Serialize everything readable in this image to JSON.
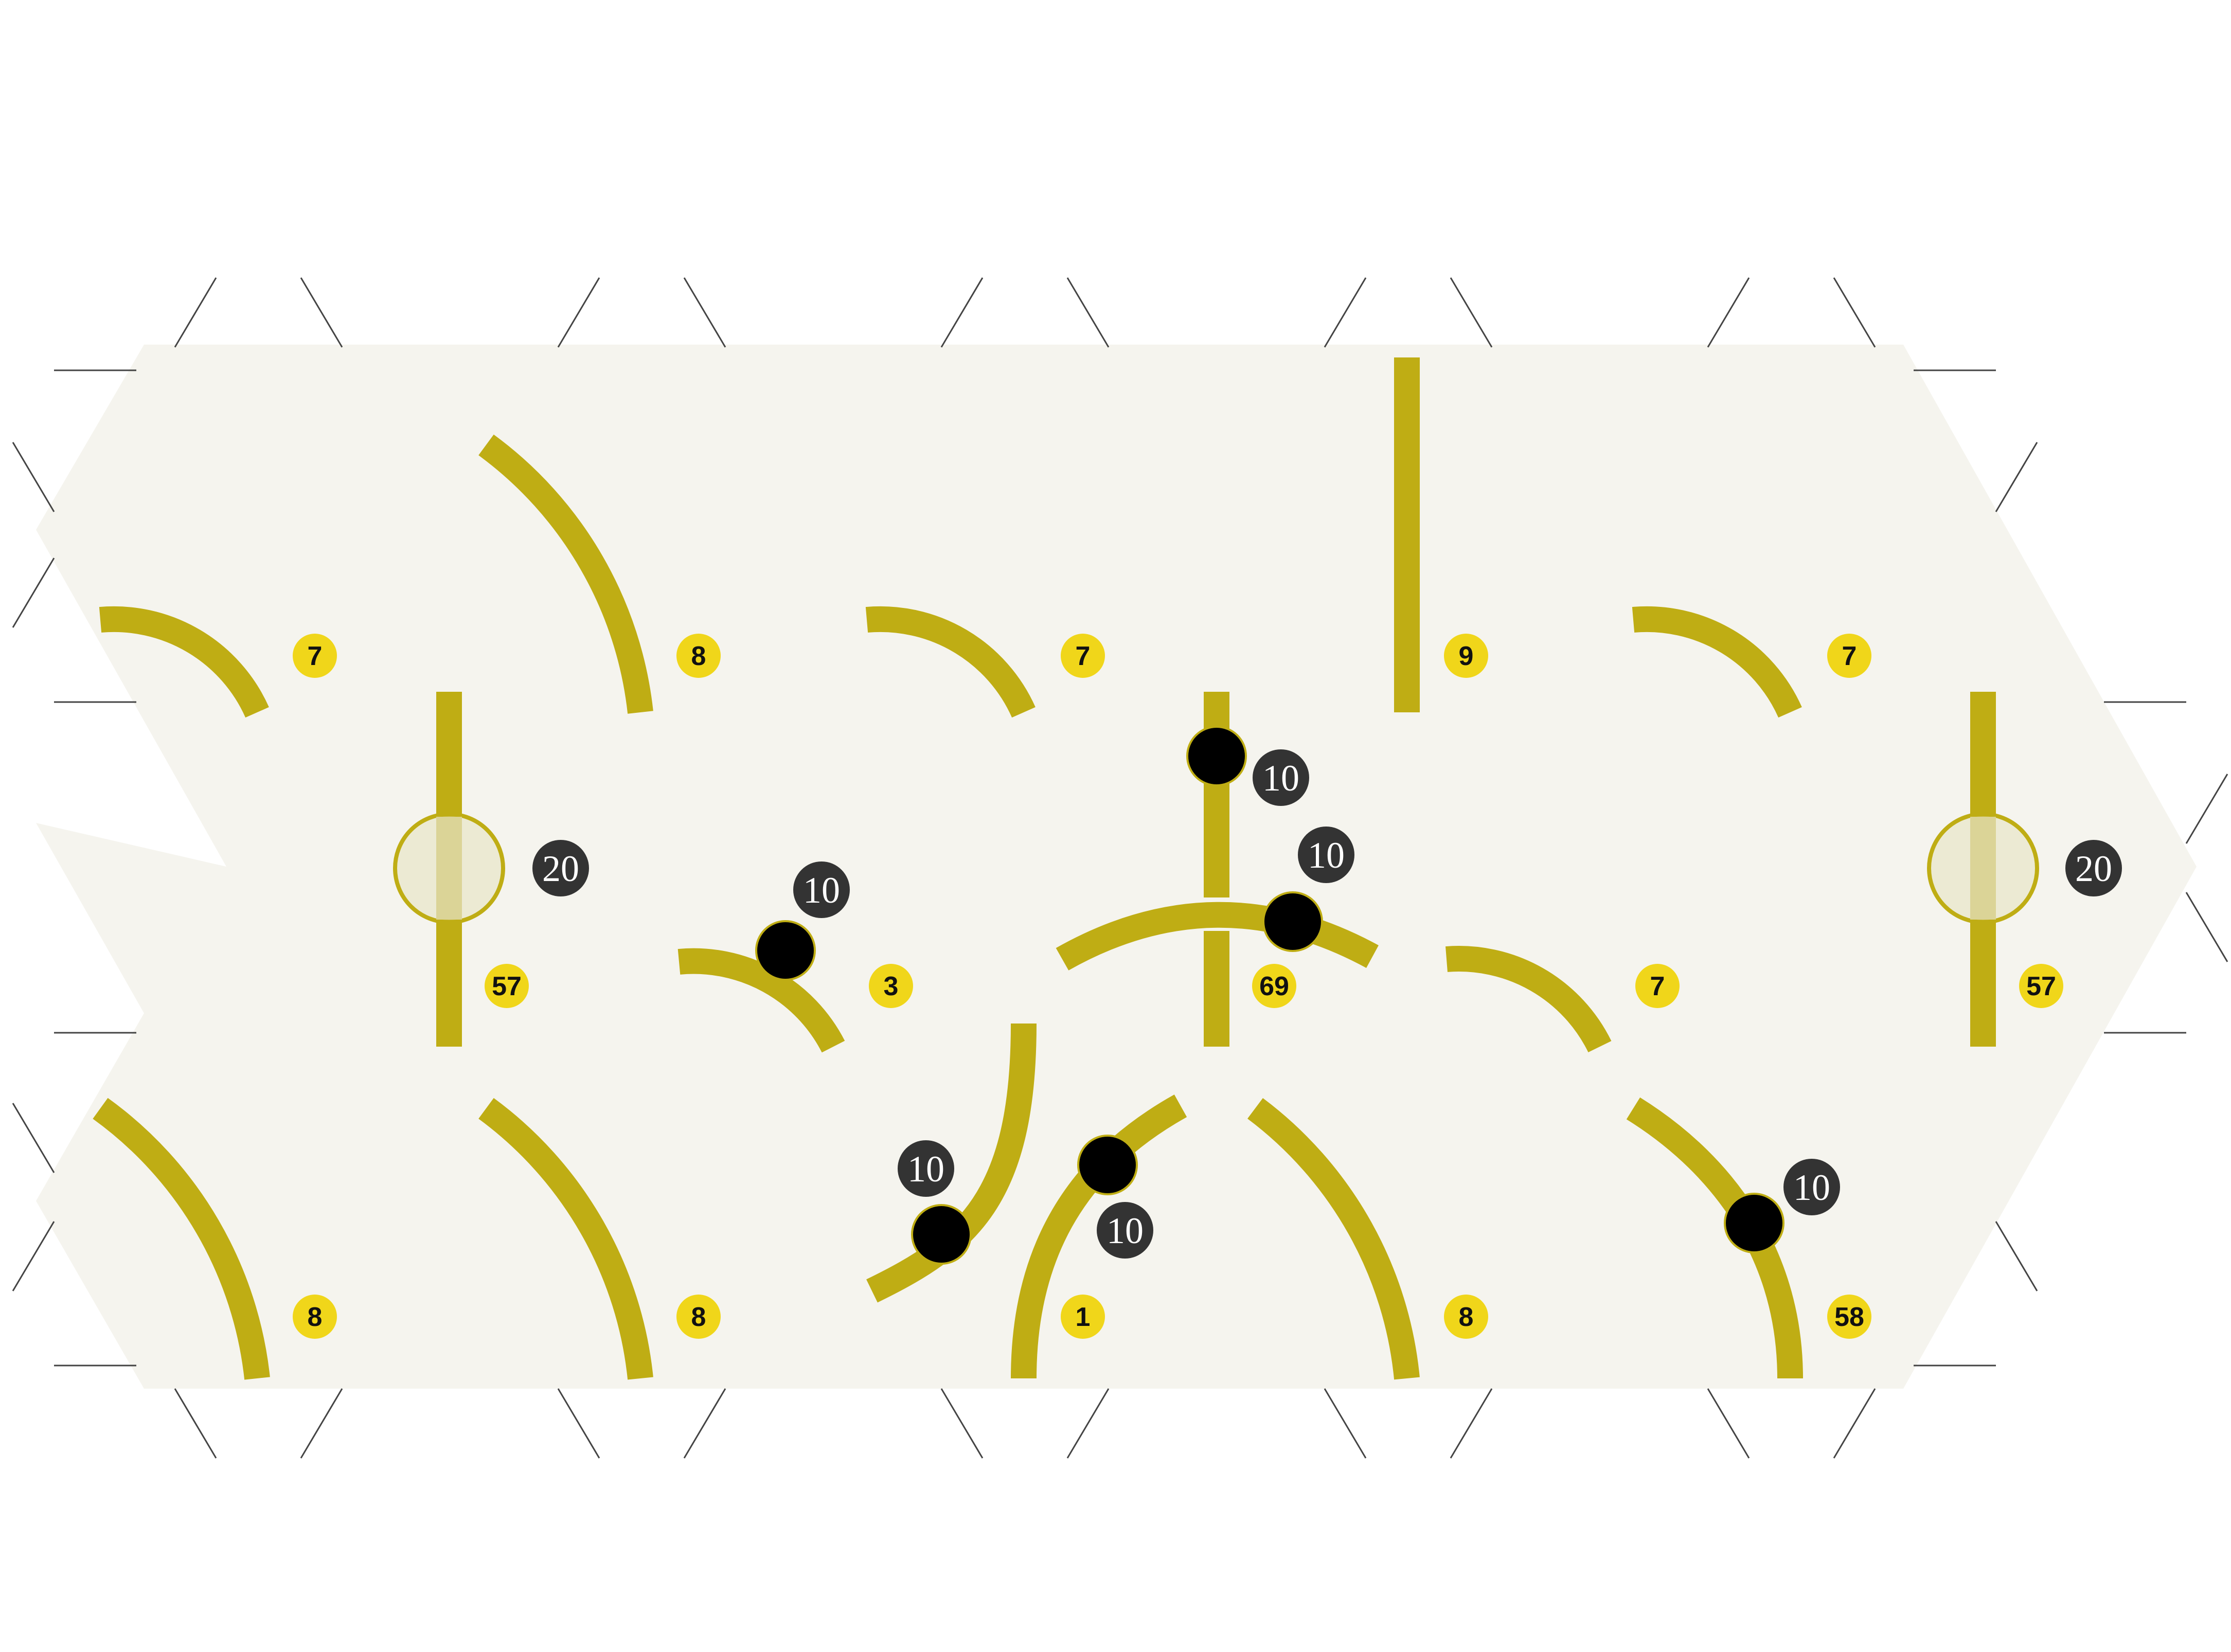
{
  "colors": {
    "background": "#ffffff",
    "board": "#f5f4ee",
    "track": "#bfad14",
    "id_badge": "#f0d61a",
    "value_badge": "#333333",
    "node_fill": "#000000",
    "ring_fill": "#ddd7a0"
  },
  "tile_labels": [
    {
      "id": "tile-1",
      "text": "7"
    },
    {
      "id": "tile-2",
      "text": "8"
    },
    {
      "id": "tile-3",
      "text": "7"
    },
    {
      "id": "tile-4",
      "text": "9"
    },
    {
      "id": "tile-5",
      "text": "7"
    },
    {
      "id": "tile-6",
      "text": "57"
    },
    {
      "id": "tile-7",
      "text": "3"
    },
    {
      "id": "tile-8",
      "text": "69"
    },
    {
      "id": "tile-9",
      "text": "7"
    },
    {
      "id": "tile-10",
      "text": "57"
    },
    {
      "id": "tile-11",
      "text": "8"
    },
    {
      "id": "tile-12",
      "text": "8"
    },
    {
      "id": "tile-13",
      "text": "1"
    },
    {
      "id": "tile-14",
      "text": "8"
    },
    {
      "id": "tile-15",
      "text": "58"
    }
  ],
  "value_labels": [
    {
      "id": "value-left-ring",
      "text": "20"
    },
    {
      "id": "value-right-ring",
      "text": "20"
    },
    {
      "id": "value-center-top",
      "text": "10"
    },
    {
      "id": "value-center-arc",
      "text": "10"
    },
    {
      "id": "value-tile-3",
      "text": "10"
    },
    {
      "id": "value-lower-left",
      "text": "10"
    },
    {
      "id": "value-lower-center",
      "text": "10"
    },
    {
      "id": "value-lower-right",
      "text": "10"
    }
  ]
}
